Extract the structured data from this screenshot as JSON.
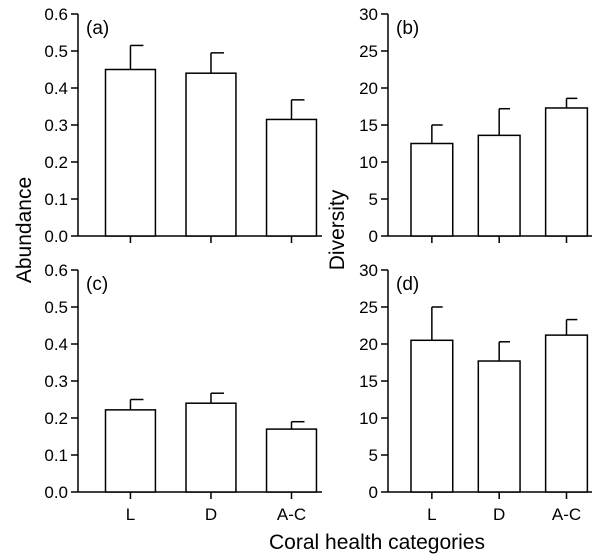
{
  "chart_data": [
    {
      "type": "bar",
      "panel_label": "(a)",
      "categories": [
        "L",
        "D",
        "A-C"
      ],
      "values": [
        0.45,
        0.44,
        0.315
      ],
      "errors": [
        0.065,
        0.055,
        0.053
      ],
      "ylim": [
        0,
        0.6
      ],
      "yticks": [
        "0.0",
        "0.1",
        "0.2",
        "0.3",
        "0.4",
        "0.5",
        "0.6"
      ],
      "show_xticklabels": false
    },
    {
      "type": "bar",
      "panel_label": "(b)",
      "categories": [
        "L",
        "D",
        "A-C"
      ],
      "values": [
        12.5,
        13.6,
        17.3
      ],
      "errors": [
        2.5,
        3.6,
        1.3
      ],
      "ylim": [
        0,
        30
      ],
      "yticks": [
        "0",
        "5",
        "10",
        "15",
        "20",
        "25",
        "30"
      ],
      "show_xticklabels": false
    },
    {
      "type": "bar",
      "panel_label": "(c)",
      "categories": [
        "L",
        "D",
        "A-C"
      ],
      "values": [
        0.222,
        0.24,
        0.17
      ],
      "errors": [
        0.028,
        0.027,
        0.02
      ],
      "ylim": [
        0,
        0.6
      ],
      "yticks": [
        "0.0",
        "0.1",
        "0.2",
        "0.3",
        "0.4",
        "0.5",
        "0.6"
      ],
      "show_xticklabels": true
    },
    {
      "type": "bar",
      "panel_label": "(d)",
      "categories": [
        "L",
        "D",
        "A-C"
      ],
      "values": [
        20.5,
        17.7,
        21.2
      ],
      "errors": [
        4.5,
        2.6,
        2.1
      ],
      "ylim": [
        0,
        30
      ],
      "yticks": [
        "0",
        "5",
        "10",
        "15",
        "20",
        "25",
        "30"
      ],
      "show_xticklabels": true
    }
  ],
  "labels": {
    "left_ylabel": "Abundance",
    "right_ylabel": "Diversity",
    "xlabel": "Coral health categories"
  }
}
